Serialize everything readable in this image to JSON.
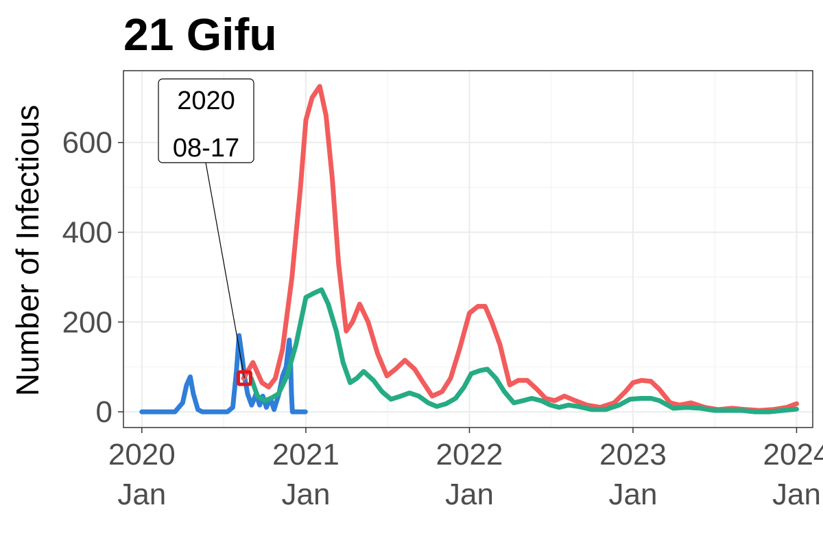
{
  "chart_data": {
    "type": "line",
    "title": "21 Gifu",
    "xlabel": "",
    "ylabel": "Number of Infectious",
    "x_ticks": [
      {
        "date": "2020-01-01",
        "year": "2020",
        "month": "Jan"
      },
      {
        "date": "2021-01-01",
        "year": "2021",
        "month": "Jan"
      },
      {
        "date": "2022-01-01",
        "year": "2022",
        "month": "Jan"
      },
      {
        "date": "2023-01-01",
        "year": "2023",
        "month": "Jan"
      },
      {
        "date": "2024-01-01",
        "year": "2024",
        "month": "Jan"
      }
    ],
    "y_ticks": [
      "0",
      "200",
      "400",
      "600"
    ],
    "xlim": [
      "2019-11-21",
      "2024-02-06"
    ],
    "ylim": [
      -35,
      760
    ],
    "grid": true,
    "legend": "none",
    "annotation": {
      "line1": "2020",
      "line2": "08-17",
      "date": "2020-08-17",
      "value": 75
    },
    "series": [
      {
        "color": "#2f7ed8",
        "points": [
          [
            "2020-01-01",
            0
          ],
          [
            "2020-03-15",
            0
          ],
          [
            "2020-04-01",
            20
          ],
          [
            "2020-04-10",
            60
          ],
          [
            "2020-04-18",
            78
          ],
          [
            "2020-04-25",
            40
          ],
          [
            "2020-05-05",
            5
          ],
          [
            "2020-05-15",
            0
          ],
          [
            "2020-07-10",
            0
          ],
          [
            "2020-07-22",
            10
          ],
          [
            "2020-07-30",
            90
          ],
          [
            "2020-08-05",
            170
          ],
          [
            "2020-08-12",
            120
          ],
          [
            "2020-08-17",
            80
          ],
          [
            "2020-08-24",
            40
          ],
          [
            "2020-09-02",
            15
          ],
          [
            "2020-09-12",
            40
          ],
          [
            "2020-09-20",
            15
          ],
          [
            "2020-09-27",
            35
          ],
          [
            "2020-10-05",
            10
          ],
          [
            "2020-10-14",
            30
          ],
          [
            "2020-10-22",
            5
          ],
          [
            "2020-11-02",
            40
          ],
          [
            "2020-11-10",
            80
          ],
          [
            "2020-11-18",
            100
          ],
          [
            "2020-11-25",
            160
          ],
          [
            "2020-11-28",
            110
          ],
          [
            "2020-11-30",
            40
          ],
          [
            "2020-12-02",
            0
          ],
          [
            "2020-12-31",
            0
          ]
        ]
      },
      {
        "color": "#f25c5c",
        "points": [
          [
            "2020-08-15",
            75
          ],
          [
            "2020-09-05",
            110
          ],
          [
            "2020-09-25",
            65
          ],
          [
            "2020-10-10",
            55
          ],
          [
            "2020-10-25",
            75
          ],
          [
            "2020-11-10",
            140
          ],
          [
            "2020-12-01",
            300
          ],
          [
            "2020-12-20",
            500
          ],
          [
            "2021-01-01",
            650
          ],
          [
            "2021-01-15",
            700
          ],
          [
            "2021-02-01",
            725
          ],
          [
            "2021-02-15",
            660
          ],
          [
            "2021-03-01",
            520
          ],
          [
            "2021-03-15",
            330
          ],
          [
            "2021-04-01",
            180
          ],
          [
            "2021-04-15",
            200
          ],
          [
            "2021-05-01",
            240
          ],
          [
            "2021-05-20",
            200
          ],
          [
            "2021-06-10",
            130
          ],
          [
            "2021-07-01",
            80
          ],
          [
            "2021-07-20",
            95
          ],
          [
            "2021-08-10",
            115
          ],
          [
            "2021-09-01",
            95
          ],
          [
            "2021-09-20",
            65
          ],
          [
            "2021-10-10",
            35
          ],
          [
            "2021-11-01",
            45
          ],
          [
            "2021-11-20",
            75
          ],
          [
            "2021-12-10",
            140
          ],
          [
            "2022-01-01",
            220
          ],
          [
            "2022-01-20",
            235
          ],
          [
            "2022-02-05",
            235
          ],
          [
            "2022-02-20",
            200
          ],
          [
            "2022-03-10",
            150
          ],
          [
            "2022-04-01",
            60
          ],
          [
            "2022-04-20",
            70
          ],
          [
            "2022-05-10",
            70
          ],
          [
            "2022-06-01",
            50
          ],
          [
            "2022-06-20",
            30
          ],
          [
            "2022-07-10",
            25
          ],
          [
            "2022-08-01",
            35
          ],
          [
            "2022-08-25",
            25
          ],
          [
            "2022-09-20",
            15
          ],
          [
            "2022-10-20",
            10
          ],
          [
            "2022-11-20",
            20
          ],
          [
            "2022-12-15",
            45
          ],
          [
            "2023-01-01",
            65
          ],
          [
            "2023-01-20",
            70
          ],
          [
            "2023-02-10",
            68
          ],
          [
            "2023-03-01",
            50
          ],
          [
            "2023-03-25",
            20
          ],
          [
            "2023-04-15",
            15
          ],
          [
            "2023-05-10",
            20
          ],
          [
            "2023-06-10",
            10
          ],
          [
            "2023-07-10",
            5
          ],
          [
            "2023-08-10",
            8
          ],
          [
            "2023-09-10",
            5
          ],
          [
            "2023-10-10",
            3
          ],
          [
            "2023-11-10",
            5
          ],
          [
            "2023-12-10",
            10
          ],
          [
            "2024-01-01",
            18
          ]
        ]
      },
      {
        "color": "#26ab84",
        "points": [
          [
            "2020-09-01",
            75
          ],
          [
            "2020-09-15",
            35
          ],
          [
            "2020-10-01",
            25
          ],
          [
            "2020-10-15",
            30
          ],
          [
            "2020-11-01",
            40
          ],
          [
            "2020-11-20",
            80
          ],
          [
            "2020-12-10",
            150
          ],
          [
            "2021-01-01",
            255
          ],
          [
            "2021-01-20",
            265
          ],
          [
            "2021-02-05",
            272
          ],
          [
            "2021-02-20",
            240
          ],
          [
            "2021-03-10",
            180
          ],
          [
            "2021-03-25",
            110
          ],
          [
            "2021-04-10",
            65
          ],
          [
            "2021-04-25",
            75
          ],
          [
            "2021-05-10",
            90
          ],
          [
            "2021-06-01",
            70
          ],
          [
            "2021-06-20",
            45
          ],
          [
            "2021-07-10",
            28
          ],
          [
            "2021-08-01",
            35
          ],
          [
            "2021-08-20",
            42
          ],
          [
            "2021-09-10",
            35
          ],
          [
            "2021-10-01",
            20
          ],
          [
            "2021-10-20",
            12
          ],
          [
            "2021-11-10",
            18
          ],
          [
            "2021-12-01",
            30
          ],
          [
            "2021-12-20",
            55
          ],
          [
            "2022-01-05",
            85
          ],
          [
            "2022-01-25",
            92
          ],
          [
            "2022-02-10",
            95
          ],
          [
            "2022-03-01",
            75
          ],
          [
            "2022-03-20",
            45
          ],
          [
            "2022-04-10",
            20
          ],
          [
            "2022-05-01",
            25
          ],
          [
            "2022-05-20",
            30
          ],
          [
            "2022-06-10",
            25
          ],
          [
            "2022-07-01",
            15
          ],
          [
            "2022-07-20",
            10
          ],
          [
            "2022-08-10",
            15
          ],
          [
            "2022-09-01",
            12
          ],
          [
            "2022-10-01",
            5
          ],
          [
            "2022-11-01",
            5
          ],
          [
            "2022-12-01",
            15
          ],
          [
            "2022-12-25",
            28
          ],
          [
            "2023-01-20",
            30
          ],
          [
            "2023-02-10",
            30
          ],
          [
            "2023-03-01",
            25
          ],
          [
            "2023-04-01",
            8
          ],
          [
            "2023-05-01",
            10
          ],
          [
            "2023-06-01",
            8
          ],
          [
            "2023-07-01",
            3
          ],
          [
            "2023-08-01",
            3
          ],
          [
            "2023-09-01",
            3
          ],
          [
            "2023-10-01",
            0
          ],
          [
            "2023-11-01",
            0
          ],
          [
            "2023-12-01",
            3
          ],
          [
            "2024-01-01",
            6
          ]
        ]
      }
    ]
  }
}
